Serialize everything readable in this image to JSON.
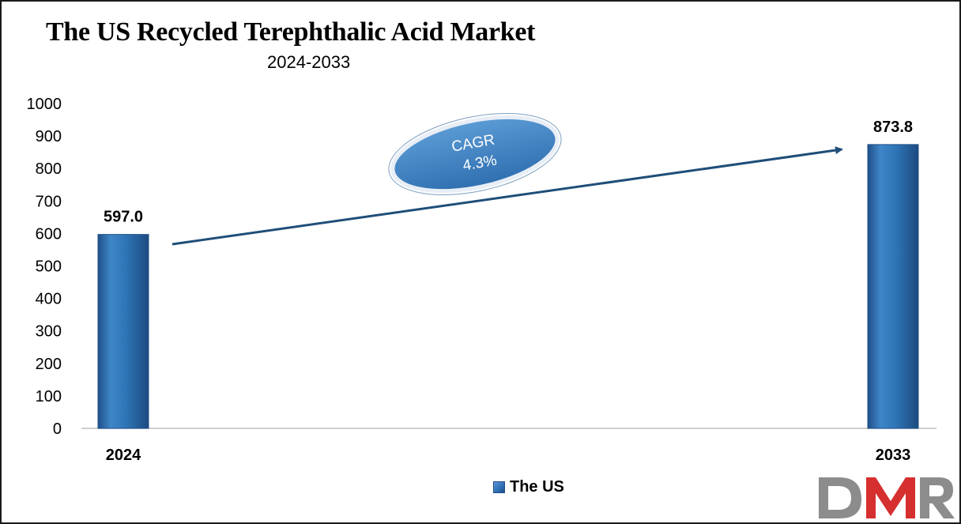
{
  "chart_data": {
    "type": "bar",
    "title": "The US Recycled Terephthalic Acid Market",
    "subtitle": "2024-2033",
    "categories": [
      "2024",
      "2033"
    ],
    "series": [
      {
        "name": "The US",
        "values": [
          597.0,
          873.8
        ]
      }
    ],
    "data_labels": [
      "597.0",
      "873.8"
    ],
    "ylim": [
      0,
      1000
    ],
    "y_ticks": [
      0,
      100,
      200,
      300,
      400,
      500,
      600,
      700,
      800,
      900,
      1000
    ],
    "grid": false,
    "legend_position": "bottom",
    "annotation": {
      "line1": "CAGR",
      "line2": "4.3%"
    }
  },
  "colors": {
    "bar": "#2e75b6",
    "arrow": "#1f4e79",
    "badge": "#3f86c6"
  },
  "logo": {
    "text": "DMR"
  }
}
